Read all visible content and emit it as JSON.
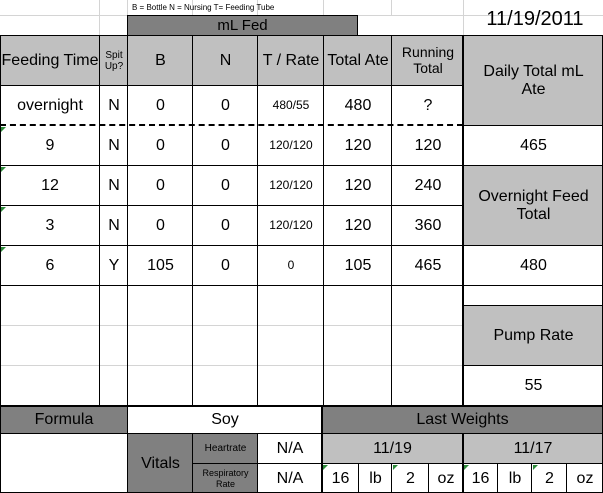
{
  "legend": {
    "text": "B = Bottle    N = Nursing    T= Feeding Tube"
  },
  "ml_fed_header": "mL Fed",
  "date": "11/19/2011",
  "columns": {
    "feeding_time": "Feeding Time",
    "spit_up": "Spit Up?",
    "b": "B",
    "n": "N",
    "t_rate": "T / Rate",
    "total_ate": "Total Ate",
    "running_total": "Running Total"
  },
  "rows": [
    {
      "time": "overnight",
      "spit": "N",
      "b": "0",
      "n": "0",
      "t": "480/55",
      "total": "480",
      "running": "?"
    },
    {
      "time": "9",
      "spit": "N",
      "b": "0",
      "n": "0",
      "t": "120/120",
      "total": "120",
      "running": "120"
    },
    {
      "time": "12",
      "spit": "N",
      "b": "0",
      "n": "0",
      "t": "120/120",
      "total": "120",
      "running": "240"
    },
    {
      "time": "3",
      "spit": "N",
      "b": "0",
      "n": "0",
      "t": "120/120",
      "total": "120",
      "running": "360"
    },
    {
      "time": "6",
      "spit": "Y",
      "b": "105",
      "n": "0",
      "t": "0",
      "total": "105",
      "running": "465"
    }
  ],
  "side": {
    "daily_total_label": "Daily Total mL Ate",
    "daily_total_value": "465",
    "overnight_label": "Overnight Feed Total",
    "overnight_value": "480",
    "pump_rate_label": "Pump Rate",
    "pump_rate_value": "55"
  },
  "formula": {
    "label": "Formula",
    "value": "Soy"
  },
  "vitals": {
    "label": "Vitals",
    "heartrate_label": "Heartrate",
    "heartrate_value": "N/A",
    "resp_label": "Respiratory Rate",
    "resp_value": "N/A"
  },
  "weights": {
    "title": "Last Weights",
    "entries": [
      {
        "date": "11/19",
        "lb": "16",
        "lb_unit": "lb",
        "oz": "2",
        "oz_unit": "oz"
      },
      {
        "date": "11/17",
        "lb": "16",
        "lb_unit": "lb",
        "oz": "2",
        "oz_unit": "oz"
      }
    ]
  }
}
